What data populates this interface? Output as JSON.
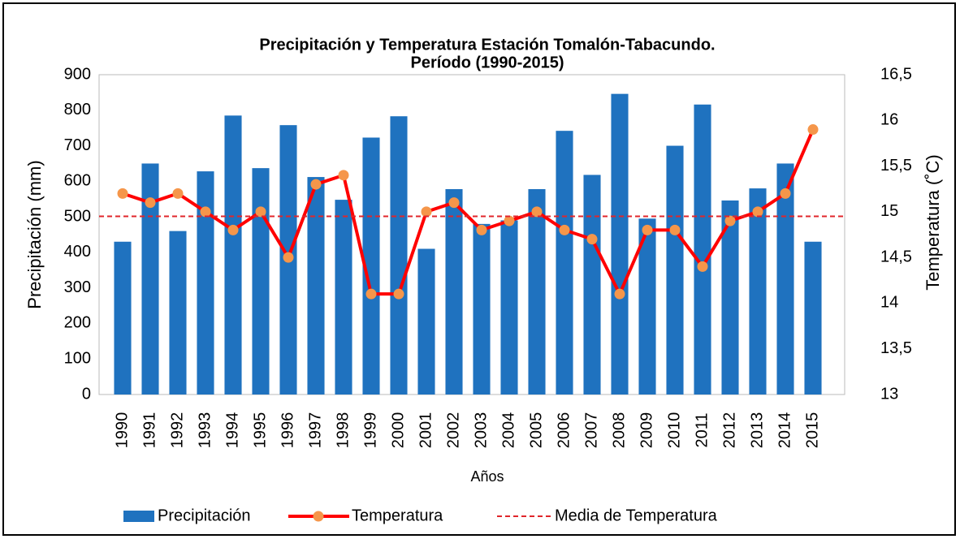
{
  "chart_data": {
    "type": "bar_line",
    "title": "Precipitación y Temperatura Estación Tomalón-Tabacundo.",
    "subtitle": "Período (1990-2015)",
    "x_label": "Años",
    "y_label": "Precipitación (mm)",
    "y2_label": "Temperatura (˚C)",
    "categories": [
      "1990",
      "1991",
      "1992",
      "1993",
      "1994",
      "1995",
      "1996",
      "1997",
      "1998",
      "1999",
      "2000",
      "2001",
      "2002",
      "2003",
      "2004",
      "2005",
      "2006",
      "2007",
      "2008",
      "2009",
      "2010",
      "2011",
      "2012",
      "2013",
      "2014",
      "2015"
    ],
    "series": [
      {
        "name": "Precipitación",
        "type": "bar",
        "color": "#1f72bf",
        "values": [
          430,
          650,
          460,
          628,
          785,
          637,
          758,
          612,
          548,
          723,
          783,
          410,
          578,
          480,
          490,
          578,
          742,
          618,
          846,
          495,
          700,
          816,
          546,
          580,
          650,
          430
        ]
      },
      {
        "name": "Temperatura",
        "type": "line",
        "axis": "y2",
        "color": "#ff0000",
        "marker_color": "#f5964a",
        "values": [
          15.2,
          15.1,
          15.2,
          15.0,
          14.8,
          15.0,
          14.5,
          15.3,
          15.4,
          14.1,
          14.1,
          15.0,
          15.1,
          14.8,
          14.9,
          15.0,
          14.8,
          14.7,
          14.1,
          14.8,
          14.8,
          14.4,
          14.9,
          15.0,
          15.2,
          15.9
        ]
      },
      {
        "name": "Media de Temperatura",
        "type": "hline",
        "axis": "y2",
        "color": "#e0262b",
        "value": 14.95
      }
    ],
    "ylim": [
      0,
      900
    ],
    "yticks": [
      0,
      100,
      200,
      300,
      400,
      500,
      600,
      700,
      800,
      900
    ],
    "y2lim": [
      13,
      16.5
    ],
    "y2ticks": [
      13,
      {
        "value": 13.5,
        "label": "13,5"
      },
      14,
      {
        "value": 14.5,
        "label": "14,5"
      },
      15,
      {
        "value": 15.5,
        "label": "15,5"
      },
      16,
      {
        "value": 16.5,
        "label": "16,5"
      }
    ],
    "legend": "bottom"
  }
}
